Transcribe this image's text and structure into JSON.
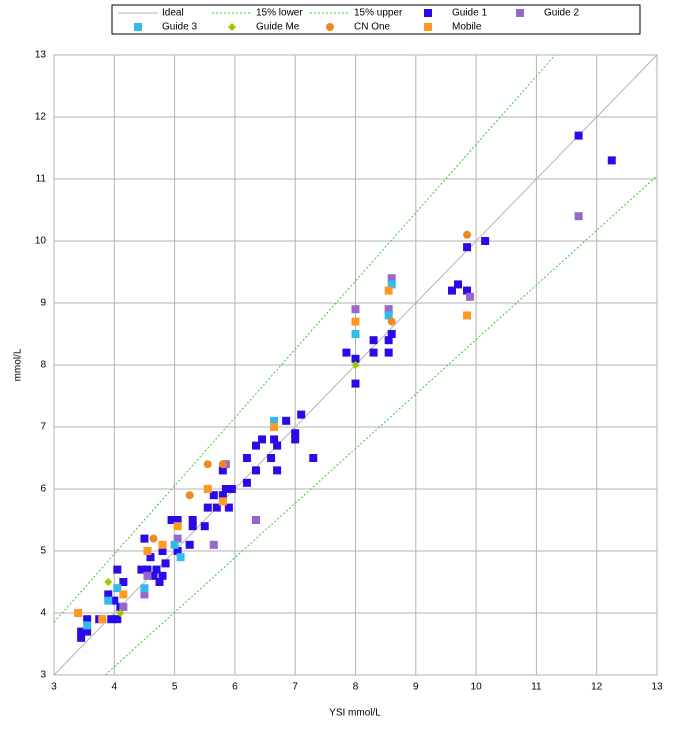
{
  "chart_data": {
    "type": "scatter",
    "x_label": "YSI mmol/L",
    "y_label": "mmol/L",
    "xlim": [
      3,
      13
    ],
    "ylim": [
      3,
      13
    ],
    "xticks": [
      3,
      4,
      5,
      6,
      7,
      8,
      9,
      10,
      11,
      12,
      13
    ],
    "yticks": [
      3,
      4,
      5,
      6,
      7,
      8,
      9,
      10,
      11,
      12,
      13
    ],
    "grid": true,
    "legend": "top",
    "series": [
      {
        "name": "Ideal",
        "color": "#b3b3b3",
        "marker": "line",
        "x": [
          3,
          13
        ],
        "values": [
          3,
          13
        ]
      },
      {
        "name": "15% lower",
        "color": "#33cc33",
        "marker": "dotted",
        "x": [
          3.85,
          13
        ],
        "values": [
          3,
          11.05
        ]
      },
      {
        "name": "15% upper",
        "color": "#33cc33",
        "marker": "dotted",
        "x": [
          3,
          11.31
        ],
        "values": [
          3.85,
          13
        ]
      },
      {
        "name": "Guide 1",
        "color": "#2a0ae8",
        "marker": "square",
        "x": [
          3.45,
          3.45,
          3.55,
          3.55,
          3.75,
          3.9,
          3.95,
          4.0,
          4.05,
          4.05,
          4.1,
          4.15,
          4.45,
          4.5,
          4.55,
          4.6,
          4.65,
          4.7,
          4.75,
          4.8,
          4.8,
          4.85,
          4.95,
          5.05,
          5.05,
          5.25,
          5.3,
          5.3,
          5.5,
          5.55,
          5.65,
          5.7,
          5.8,
          5.8,
          5.85,
          5.9,
          5.95,
          6.2,
          6.2,
          6.35,
          6.35,
          6.45,
          6.6,
          6.65,
          6.7,
          6.7,
          6.85,
          7.0,
          7.0,
          7.1,
          7.3,
          7.85,
          8.0,
          8.0,
          8.3,
          8.3,
          8.55,
          8.55,
          8.6,
          9.6,
          9.7,
          9.85,
          9.85,
          10.15,
          11.7,
          12.25
        ],
        "values": [
          3.6,
          3.7,
          3.7,
          3.9,
          3.9,
          4.3,
          3.9,
          4.2,
          4.7,
          3.9,
          4.1,
          4.5,
          4.7,
          5.2,
          4.7,
          4.9,
          4.6,
          4.7,
          4.5,
          4.6,
          5.0,
          4.8,
          5.5,
          5.5,
          5.0,
          5.1,
          5.5,
          5.4,
          5.4,
          5.7,
          5.9,
          5.7,
          6.3,
          5.9,
          6.0,
          5.7,
          6.0,
          6.1,
          6.5,
          6.7,
          6.3,
          6.8,
          6.5,
          6.8,
          6.7,
          6.3,
          7.1,
          6.8,
          6.9,
          7.2,
          6.5,
          8.2,
          8.1,
          7.7,
          8.2,
          8.4,
          8.2,
          8.4,
          8.5,
          9.2,
          9.3,
          9.2,
          9.9,
          10.0,
          11.7,
          11.3
        ]
      },
      {
        "name": "Guide 2",
        "color": "#9966cc",
        "marker": "square",
        "x": [
          4.15,
          4.5,
          4.55,
          5.05,
          5.65,
          5.85,
          6.35,
          8.0,
          8.55,
          8.6,
          9.9,
          11.7
        ],
        "values": [
          4.1,
          4.3,
          4.6,
          5.2,
          5.1,
          6.4,
          5.5,
          8.9,
          8.9,
          9.4,
          9.1,
          10.4
        ]
      },
      {
        "name": "Guide 3",
        "color": "#33bbee",
        "marker": "square",
        "x": [
          3.55,
          3.9,
          4.05,
          4.5,
          5.0,
          5.1,
          6.65,
          8.0,
          8.55,
          8.6
        ],
        "values": [
          3.8,
          4.2,
          4.4,
          4.4,
          5.1,
          4.9,
          7.1,
          8.5,
          8.8,
          9.3
        ]
      },
      {
        "name": "Guide Me",
        "color": "#99cc00",
        "marker": "diamond",
        "x": [
          3.9,
          4.1,
          8.0,
          8.6
        ],
        "values": [
          4.5,
          4.0,
          8.0,
          8.7
        ]
      },
      {
        "name": "CN One",
        "color": "#ee8822",
        "marker": "circle",
        "x": [
          4.65,
          5.25,
          5.55,
          5.8,
          9.85,
          8.6
        ],
        "values": [
          5.2,
          5.9,
          6.4,
          6.4,
          10.1,
          8.7
        ]
      },
      {
        "name": "Mobile",
        "color": "#ff9922",
        "marker": "square",
        "x": [
          3.4,
          3.8,
          4.15,
          4.55,
          4.8,
          5.05,
          5.55,
          5.8,
          6.65,
          8.0,
          8.55,
          9.85
        ],
        "values": [
          4.0,
          3.9,
          4.3,
          5.0,
          5.1,
          5.4,
          6.0,
          5.8,
          7.0,
          8.7,
          9.2,
          8.8
        ]
      }
    ]
  }
}
